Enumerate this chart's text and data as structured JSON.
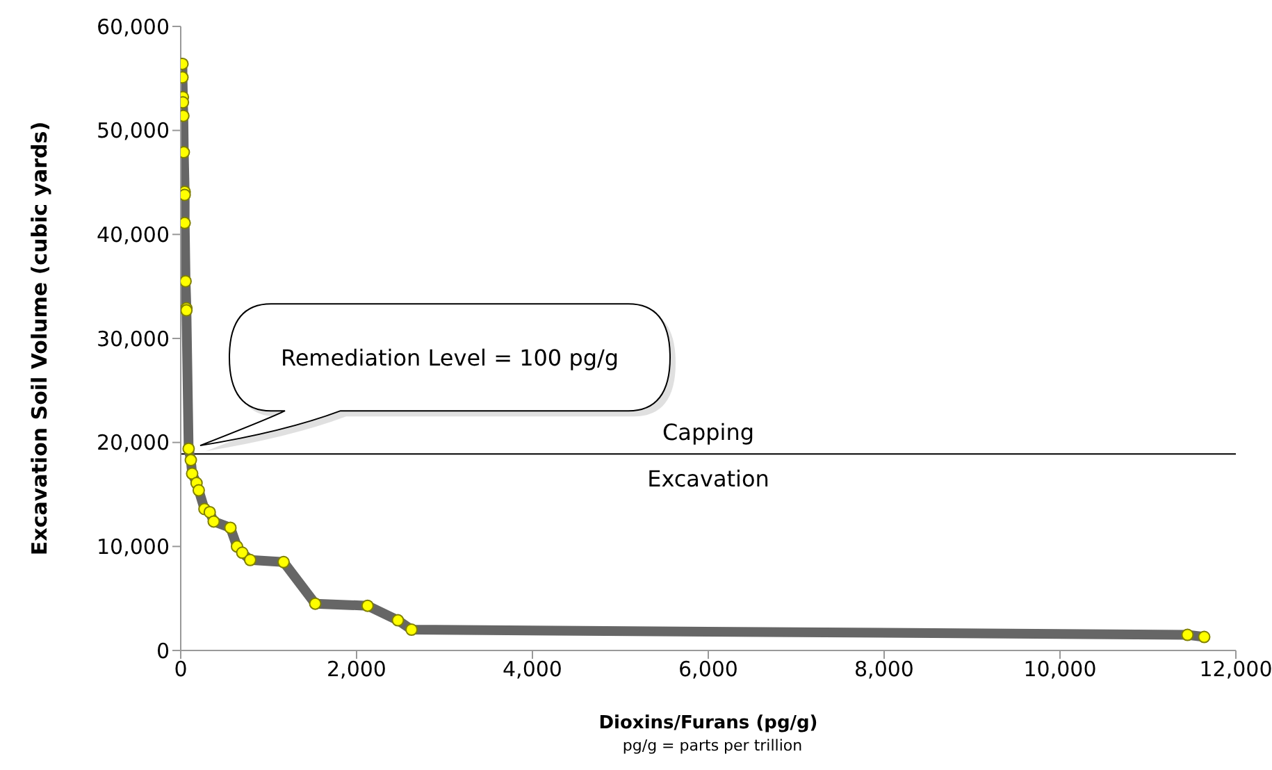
{
  "chart_data": {
    "type": "line",
    "xlabel": "Dioxins/Furans (pg/g)",
    "ylabel": "Excavation Soil Volume (cubic yards)",
    "x": [
      20,
      20,
      25,
      25,
      30,
      35,
      45,
      45,
      45,
      55,
      65,
      65,
      90,
      115,
      130,
      180,
      205,
      270,
      330,
      375,
      565,
      640,
      700,
      790,
      1170,
      1530,
      2125,
      2470,
      2625,
      11450,
      11640
    ],
    "series": [
      {
        "color": "#666666",
        "values": [
          56400,
          55100,
          53200,
          52700,
          51400,
          47900,
          44100,
          43800,
          41100,
          35500,
          32900,
          32700,
          19400,
          18300,
          17000,
          16100,
          15400,
          13600,
          13300,
          12400,
          11800,
          10000,
          9400,
          8700,
          8500,
          4500,
          4300,
          2900,
          2000,
          1500,
          1300
        ]
      }
    ],
    "xlim": [
      0,
      12000
    ],
    "xticks": [
      0,
      {
        "value": 2000,
        "label": "2,000"
      },
      {
        "value": 4000,
        "label": "4,000"
      },
      {
        "value": 6000,
        "label": "6,000"
      },
      {
        "value": 8000,
        "label": "8,000"
      },
      {
        "value": 10000,
        "label": "10,000"
      },
      {
        "value": 12000,
        "label": "12,000"
      }
    ],
    "ylim": [
      0,
      60000
    ],
    "yticks": [
      0,
      {
        "value": 10000,
        "label": "10,000"
      },
      {
        "value": 20000,
        "label": "20,000"
      },
      {
        "value": 30000,
        "label": "30,000"
      },
      {
        "value": 40000,
        "label": "40,000"
      },
      {
        "value": 50000,
        "label": "50,000"
      },
      {
        "value": 60000,
        "label": "60,000"
      }
    ],
    "ref_lines": [
      {
        "axis": "y",
        "value": 18900,
        "label": "Capping",
        "color": "#000000"
      }
    ],
    "annotations": [
      "Remediation Level = 100 pg/g",
      "Excavation",
      "pg/g = parts per trillion"
    ],
    "marker": "circle",
    "grid": false,
    "line_style": "solid"
  }
}
